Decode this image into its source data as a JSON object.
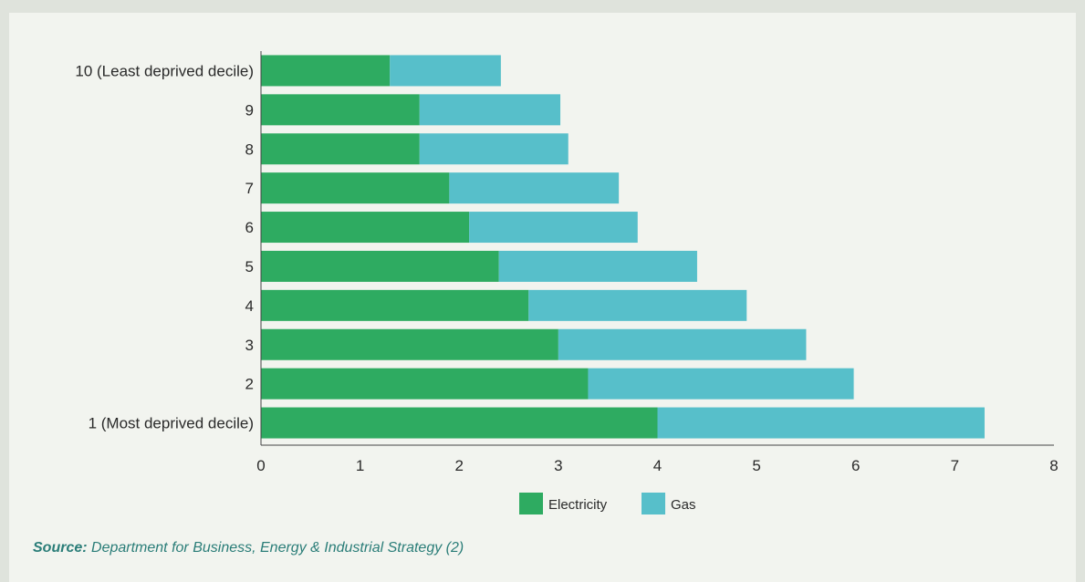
{
  "chart_data": {
    "type": "bar",
    "orientation": "horizontal",
    "stacked": true,
    "categories": [
      "10 (Least deprived decile)",
      "9",
      "8",
      "7",
      "6",
      "5",
      "4",
      "3",
      "2",
      "1 (Most deprived decile)"
    ],
    "series": [
      {
        "name": "Electricity",
        "color": "#2eab61",
        "values": [
          1.3,
          1.6,
          1.6,
          1.9,
          2.1,
          2.4,
          2.7,
          3.0,
          3.3,
          4.0
        ]
      },
      {
        "name": "Gas",
        "color": "#57bfca",
        "values": [
          1.12,
          1.42,
          1.5,
          1.71,
          1.7,
          2.0,
          2.2,
          2.5,
          2.68,
          3.3
        ]
      }
    ],
    "xlim": [
      0,
      8
    ],
    "xticks": [
      "0",
      "1",
      "2",
      "3",
      "4",
      "5",
      "6",
      "7",
      "8"
    ],
    "xlabel": "",
    "ylabel": "",
    "grid": false,
    "legend_position": "bottom-center"
  },
  "source": {
    "label": "Source:",
    "text": "Department for Business, Energy & Industrial Strategy (2)"
  }
}
